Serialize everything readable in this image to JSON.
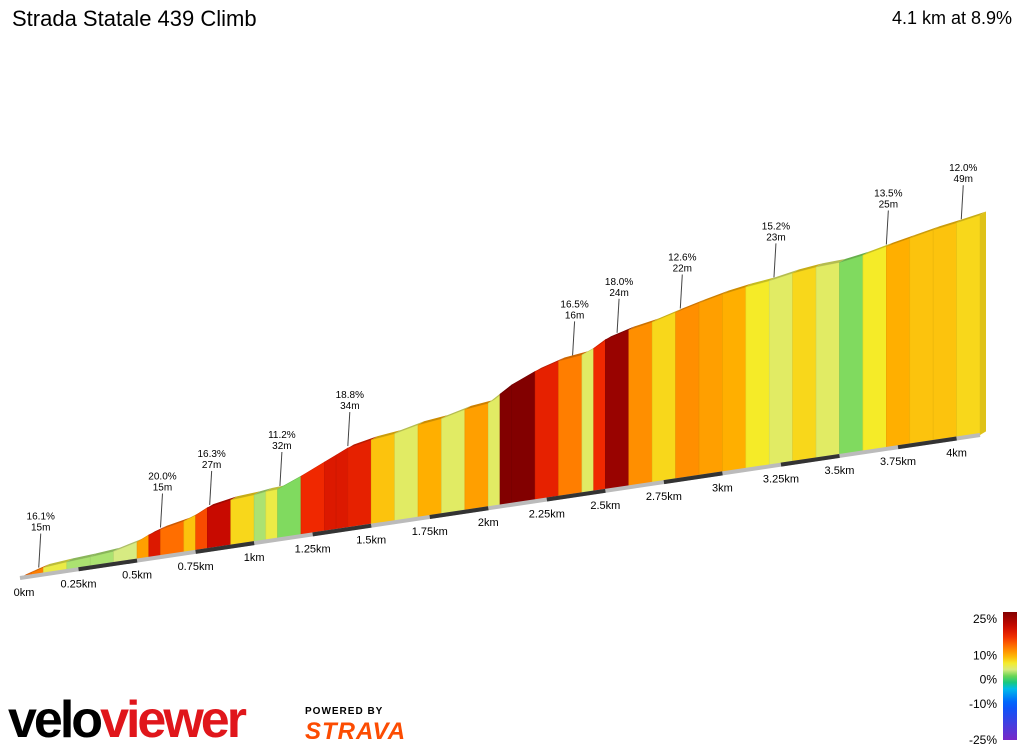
{
  "header": {
    "title": "Strada Statale 439 Climb",
    "summary": "4.1 km at 8.9%"
  },
  "colors": {
    "brand_velo": "#000000",
    "brand_viewer": "#e0161b",
    "strava": "#fc4c02"
  },
  "footer": {
    "logo_part1": "velo",
    "logo_part2": "viewer",
    "powered_by": "POWERED BY",
    "strava": "STRAVA"
  },
  "chart_data": {
    "type": "area",
    "title": "Strada Statale 439 Climb",
    "xlabel": "",
    "ylabel": "",
    "xlim": [
      0,
      4.1
    ],
    "ylim": [
      0,
      365
    ],
    "x_ticks": [
      {
        "value": 0,
        "label": "0km"
      },
      {
        "value": 0.25,
        "label": "0.25km"
      },
      {
        "value": 0.5,
        "label": "0.5km"
      },
      {
        "value": 0.75,
        "label": "0.75km"
      },
      {
        "value": 1,
        "label": "1km"
      },
      {
        "value": 1.25,
        "label": "1.25km"
      },
      {
        "value": 1.5,
        "label": "1.5km"
      },
      {
        "value": 1.75,
        "label": "1.75km"
      },
      {
        "value": 2,
        "label": "2km"
      },
      {
        "value": 2.25,
        "label": "2.25km"
      },
      {
        "value": 2.5,
        "label": "2.5km"
      },
      {
        "value": 2.75,
        "label": "2.75km"
      },
      {
        "value": 3,
        "label": "3km"
      },
      {
        "value": 3.25,
        "label": "3.25km"
      },
      {
        "value": 3.5,
        "label": "3.5km"
      },
      {
        "value": 3.75,
        "label": "3.75km"
      },
      {
        "value": 4,
        "label": "4km"
      }
    ],
    "elevation_profile": {
      "x_km": [
        0,
        0.05,
        0.1,
        0.2,
        0.3,
        0.4,
        0.5,
        0.55,
        0.6,
        0.7,
        0.75,
        0.8,
        0.9,
        1.0,
        1.05,
        1.1,
        1.2,
        1.3,
        1.35,
        1.4,
        1.5,
        1.6,
        1.7,
        1.8,
        1.9,
        2.0,
        2.05,
        2.1,
        2.2,
        2.3,
        2.4,
        2.45,
        2.5,
        2.6,
        2.7,
        2.8,
        2.9,
        3.0,
        3.1,
        3.2,
        3.3,
        3.4,
        3.5,
        3.6,
        3.7,
        3.8,
        3.9,
        4.0,
        4.1
      ],
      "elev_m": [
        0,
        7,
        13,
        17,
        20,
        24,
        35,
        45,
        52,
        61,
        69,
        80,
        88,
        91,
        94,
        95,
        113,
        133,
        143,
        153,
        162,
        167,
        177,
        182,
        193,
        198,
        212,
        226,
        245,
        258,
        263,
        272,
        285,
        297,
        305,
        317,
        328,
        338,
        345,
        350,
        358,
        363,
        365,
        372,
        382,
        391,
        400,
        407,
        415
      ],
      "grade_pct": [
        14,
        13,
        6,
        3,
        3,
        4,
        11,
        20,
        14,
        9,
        16,
        22,
        8,
        3,
        6,
        2,
        18,
        20,
        20,
        19,
        9,
        5,
        10,
        5,
        11,
        5,
        28,
        28,
        19,
        13,
        5,
        18,
        26,
        12,
        8,
        12,
        11,
        10,
        7,
        5,
        8,
        5,
        2,
        7,
        10,
        9,
        9,
        8,
        8
      ]
    },
    "annotations": [
      {
        "x_km": 0.08,
        "grade": "16.1%",
        "length": "15m"
      },
      {
        "x_km": 0.6,
        "grade": "20.0%",
        "length": "15m"
      },
      {
        "x_km": 0.81,
        "grade": "16.3%",
        "length": "27m"
      },
      {
        "x_km": 1.11,
        "grade": "11.2%",
        "length": "32m"
      },
      {
        "x_km": 1.4,
        "grade": "18.8%",
        "length": "34m"
      },
      {
        "x_km": 2.36,
        "grade": "16.5%",
        "length": "16m"
      },
      {
        "x_km": 2.55,
        "grade": "18.0%",
        "length": "24m"
      },
      {
        "x_km": 2.82,
        "grade": "12.6%",
        "length": "22m"
      },
      {
        "x_km": 3.22,
        "grade": "15.2%",
        "length": "23m"
      },
      {
        "x_km": 3.7,
        "grade": "13.5%",
        "length": "25m"
      },
      {
        "x_km": 4.02,
        "grade": "12.0%",
        "length": "49m"
      }
    ],
    "legend": {
      "title": "",
      "labels": [
        "25%",
        "10%",
        "0%",
        "-10%",
        "-25%"
      ],
      "placement": "bottom-right"
    }
  }
}
